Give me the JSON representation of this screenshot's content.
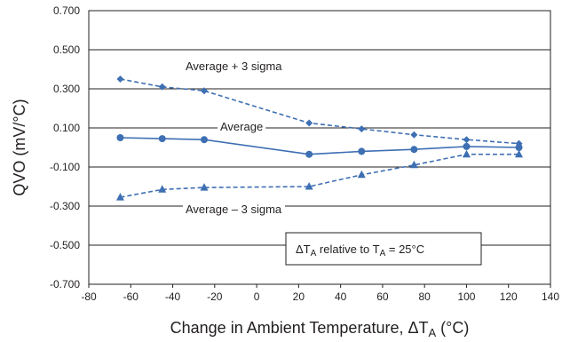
{
  "chart_data": {
    "type": "line",
    "title": "",
    "xlabel": {
      "prefix": "Change in Ambient Temperature, ΔT",
      "sub": "A",
      "suffix": " (°C)"
    },
    "ylabel": "QVO (mV/°C)",
    "xlim": [
      -80,
      140
    ],
    "ylim": [
      -0.7,
      0.7
    ],
    "x_ticks": [
      -80,
      -60,
      -40,
      -20,
      0,
      20,
      40,
      60,
      80,
      100,
      120,
      140
    ],
    "x_tick_labels": [
      "-80",
      "-60",
      "-40",
      "-20",
      "0",
      "20",
      "40",
      "60",
      "80",
      "100",
      "120",
      "140"
    ],
    "y_ticks": [
      0.7,
      0.5,
      0.3,
      0.1,
      -0.1,
      -0.3,
      -0.5,
      -0.7
    ],
    "y_tick_labels": [
      "0.700",
      "0.500",
      "0.300",
      "0.100",
      "-0.100",
      "-0.300",
      "-0.500",
      "-0.700"
    ],
    "grid": true,
    "series": [
      {
        "name": "Average + 3 sigma",
        "marker": "diamond",
        "dashed": true,
        "x": [
          -65,
          -45,
          -25,
          25,
          50,
          75,
          100,
          125
        ],
        "y": [
          0.35,
          0.31,
          0.29,
          0.125,
          0.095,
          0.065,
          0.04,
          0.02
        ]
      },
      {
        "name": "Average",
        "marker": "circle",
        "dashed": false,
        "x": [
          -65,
          -45,
          -25,
          25,
          50,
          75,
          100,
          125
        ],
        "y": [
          0.05,
          0.045,
          0.04,
          -0.035,
          -0.02,
          -0.01,
          0.005,
          0.0
        ]
      },
      {
        "name": "Average – 3 sigma",
        "marker": "triangle",
        "dashed": true,
        "x": [
          -65,
          -45,
          -25,
          25,
          50,
          75,
          100,
          125
        ],
        "y": [
          -0.255,
          -0.215,
          -0.205,
          -0.2,
          -0.14,
          -0.09,
          -0.035,
          -0.035
        ]
      }
    ],
    "note": {
      "prefix": "ΔT",
      "sub1": "A",
      "mid": " relative to T",
      "sub2": "A",
      "suffix": " = 25°C"
    },
    "colors": {
      "series": "#3e6fb3",
      "axis": "#231f20"
    }
  }
}
